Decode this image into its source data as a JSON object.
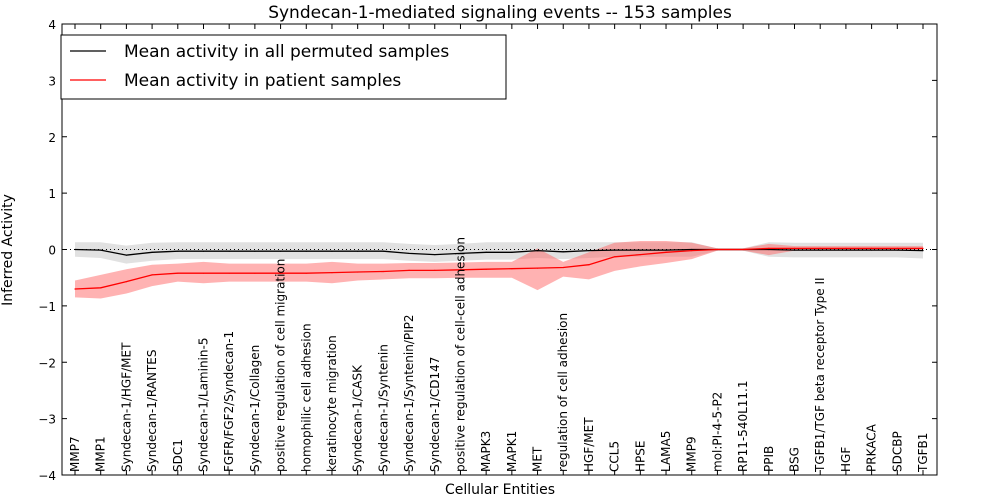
{
  "chart_data": {
    "type": "line",
    "title": "Syndecan-1-mediated signaling events -- 153 samples",
    "xlabel": "Cellular Entities",
    "ylabel": "Inferred Activity",
    "ylim": [
      -4,
      4
    ],
    "yticks": [
      -4,
      -3,
      -2,
      -1,
      0,
      1,
      2,
      3,
      4
    ],
    "ytick_labels": [
      "−4",
      "−3",
      "−2",
      "−1",
      "0",
      "1",
      "2",
      "3",
      "4"
    ],
    "legend_position": "top-left",
    "categories": [
      "MMP7",
      "MMP1",
      "Syndecan-1/HGF/MET",
      "Syndecan-1/RANTES",
      "SDC1",
      "Syndecan-1/Laminin-5",
      "FGFR/FGF2/Syndecan-1",
      "Syndecan-1/Collagen",
      "positive regulation of cell migration",
      "homophilic cell adhesion",
      "keratinocyte migration",
      "Syndecan-1/CASK",
      "Syndecan-1/Syntenin",
      "Syndecan-1/Syntenin/PIP2",
      "Syndecan-1/CD147",
      "positive regulation of cell-cell adhesion",
      "MAPK3",
      "MAPK1",
      "MET",
      "regulation of cell adhesion",
      "HGF/MET",
      "CCL5",
      "HPSE",
      "LAMA5",
      "MMP9",
      "mol:PI-4-5-P2",
      "RP11-540L11.1",
      "PPIB",
      "BSG",
      "TGFB1/TGF beta receptor Type II",
      "HGF",
      "PRKACA",
      "SDCBP",
      "TGFB1"
    ],
    "series": [
      {
        "name": "Mean activity in all permuted samples",
        "color": "#000000",
        "values": [
          0.0,
          -0.01,
          -0.1,
          -0.05,
          -0.03,
          -0.03,
          -0.03,
          -0.03,
          -0.03,
          -0.03,
          -0.03,
          -0.03,
          -0.03,
          -0.07,
          -0.09,
          -0.07,
          -0.05,
          -0.05,
          -0.02,
          -0.04,
          -0.02,
          -0.01,
          -0.01,
          -0.01,
          0.0,
          0.0,
          0.0,
          0.0,
          -0.01,
          -0.01,
          -0.01,
          -0.01,
          -0.01,
          -0.02
        ],
        "band_upper": [
          0.13,
          0.13,
          0.07,
          0.12,
          0.13,
          0.13,
          0.13,
          0.13,
          0.13,
          0.13,
          0.13,
          0.13,
          0.13,
          0.1,
          0.08,
          0.1,
          0.13,
          0.13,
          0.13,
          0.13,
          0.13,
          0.13,
          0.13,
          0.13,
          0.13,
          0.02,
          0.02,
          0.13,
          0.12,
          0.12,
          0.12,
          0.12,
          0.12,
          0.12
        ],
        "band_lower": [
          -0.13,
          -0.15,
          -0.25,
          -0.2,
          -0.17,
          -0.17,
          -0.17,
          -0.17,
          -0.17,
          -0.17,
          -0.17,
          -0.17,
          -0.17,
          -0.2,
          -0.22,
          -0.2,
          -0.18,
          -0.18,
          -0.15,
          -0.17,
          -0.15,
          -0.13,
          -0.13,
          -0.13,
          -0.13,
          -0.02,
          -0.02,
          -0.13,
          -0.14,
          -0.14,
          -0.14,
          -0.14,
          -0.14,
          -0.16
        ]
      },
      {
        "name": "Mean activity in patient samples",
        "color": "#ff0000",
        "band_color": "#ff6666",
        "values": [
          -0.7,
          -0.68,
          -0.57,
          -0.45,
          -0.42,
          -0.42,
          -0.42,
          -0.42,
          -0.42,
          -0.42,
          -0.41,
          -0.4,
          -0.39,
          -0.37,
          -0.37,
          -0.36,
          -0.35,
          -0.34,
          -0.33,
          -0.32,
          -0.27,
          -0.13,
          -0.09,
          -0.05,
          -0.02,
          0.0,
          0.0,
          0.02,
          0.02,
          0.02,
          0.02,
          0.02,
          0.02,
          0.02
        ],
        "band_upper": [
          -0.55,
          -0.45,
          -0.35,
          -0.27,
          -0.25,
          -0.22,
          -0.25,
          -0.25,
          -0.25,
          -0.25,
          -0.22,
          -0.25,
          -0.25,
          -0.24,
          -0.24,
          -0.23,
          -0.22,
          -0.22,
          0.02,
          -0.22,
          -0.05,
          0.12,
          0.15,
          0.15,
          0.12,
          0.02,
          0.02,
          0.1,
          0.06,
          0.06,
          0.06,
          0.06,
          0.06,
          0.06
        ],
        "band_lower": [
          -0.85,
          -0.87,
          -0.78,
          -0.65,
          -0.57,
          -0.6,
          -0.57,
          -0.57,
          -0.57,
          -0.57,
          -0.6,
          -0.55,
          -0.53,
          -0.51,
          -0.51,
          -0.5,
          -0.5,
          -0.5,
          -0.72,
          -0.48,
          -0.53,
          -0.38,
          -0.3,
          -0.24,
          -0.17,
          -0.02,
          -0.02,
          -0.1,
          -0.02,
          -0.02,
          -0.02,
          -0.02,
          -0.02,
          -0.02
        ]
      }
    ],
    "reference_line": {
      "y": 0,
      "style": "dotted"
    }
  }
}
